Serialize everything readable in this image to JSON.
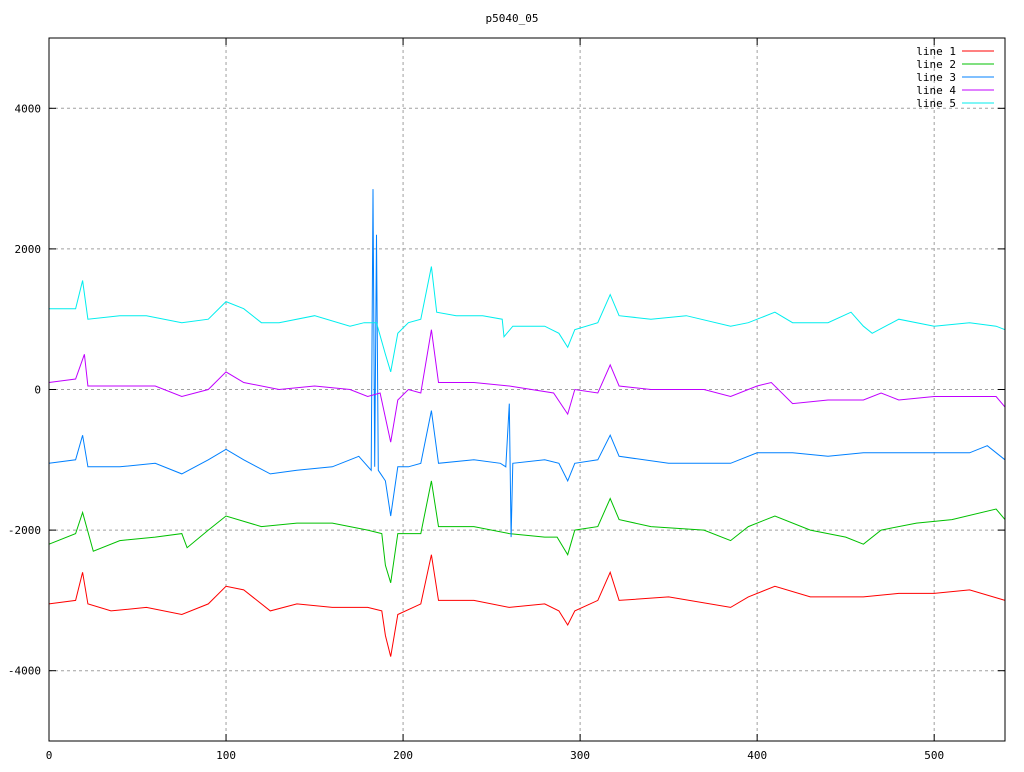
{
  "chart_data": {
    "type": "line",
    "title": "p5040_05",
    "xlabel": "",
    "ylabel": "",
    "xlim": [
      0,
      540
    ],
    "ylim": [
      -5000,
      5000
    ],
    "xticks": [
      0,
      100,
      200,
      300,
      400,
      500
    ],
    "yticks": [
      -4000,
      -2000,
      0,
      2000,
      4000
    ],
    "grid": true,
    "legend_position": "top-right",
    "series": [
      {
        "name": "line 1",
        "color": "#ff0000",
        "x": [
          0,
          15,
          19,
          22,
          35,
          55,
          75,
          90,
          100,
          110,
          125,
          140,
          160,
          180,
          188,
          190,
          193,
          197,
          210,
          216,
          220,
          240,
          260,
          280,
          288,
          293,
          297,
          310,
          317,
          322,
          350,
          385,
          395,
          410,
          430,
          460,
          480,
          500,
          520,
          540
        ],
        "y": [
          -3050,
          -3000,
          -2600,
          -3050,
          -3150,
          -3100,
          -3200,
          -3050,
          -2800,
          -2850,
          -3150,
          -3050,
          -3100,
          -3100,
          -3150,
          -3500,
          -3800,
          -3200,
          -3050,
          -2350,
          -3000,
          -3000,
          -3100,
          -3050,
          -3150,
          -3350,
          -3150,
          -3000,
          -2600,
          -3000,
          -2950,
          -3100,
          -2950,
          -2800,
          -2950,
          -2950,
          -2900,
          -2900,
          -2850,
          -3000
        ]
      },
      {
        "name": "line 2",
        "color": "#00c000",
        "x": [
          0,
          15,
          19,
          25,
          40,
          60,
          75,
          78,
          90,
          100,
          120,
          140,
          160,
          180,
          188,
          190,
          193,
          197,
          210,
          216,
          220,
          240,
          260,
          280,
          287,
          293,
          297,
          310,
          317,
          322,
          340,
          370,
          385,
          395,
          410,
          430,
          450,
          460,
          470,
          490,
          510,
          535,
          540
        ],
        "y": [
          -2200,
          -2050,
          -1750,
          -2300,
          -2150,
          -2100,
          -2050,
          -2250,
          -2000,
          -1800,
          -1950,
          -1900,
          -1900,
          -2000,
          -2050,
          -2500,
          -2750,
          -2050,
          -2050,
          -1300,
          -1950,
          -1950,
          -2050,
          -2100,
          -2100,
          -2350,
          -2000,
          -1950,
          -1550,
          -1850,
          -1950,
          -2000,
          -2150,
          -1950,
          -1800,
          -2000,
          -2100,
          -2200,
          -2000,
          -1900,
          -1850,
          -1700,
          -1850
        ]
      },
      {
        "name": "line 3",
        "color": "#0080ff",
        "x": [
          0,
          15,
          19,
          22,
          40,
          60,
          75,
          90,
          100,
          110,
          125,
          140,
          160,
          175,
          182,
          183,
          184,
          185,
          186,
          190,
          193,
          197,
          203,
          210,
          216,
          220,
          240,
          255,
          258,
          260,
          261,
          262,
          280,
          288,
          293,
          297,
          310,
          317,
          322,
          350,
          370,
          385,
          400,
          420,
          440,
          460,
          480,
          500,
          520,
          530,
          540
        ],
        "y": [
          -1050,
          -1000,
          -650,
          -1100,
          -1100,
          -1050,
          -1200,
          -1000,
          -850,
          -1000,
          -1200,
          -1150,
          -1100,
          -950,
          -1150,
          2850,
          -1100,
          2200,
          -1150,
          -1300,
          -1800,
          -1100,
          -1100,
          -1050,
          -300,
          -1050,
          -1000,
          -1050,
          -1100,
          -200,
          -2100,
          -1050,
          -1000,
          -1050,
          -1300,
          -1050,
          -1000,
          -650,
          -950,
          -1050,
          -1050,
          -1050,
          -900,
          -900,
          -950,
          -900,
          -900,
          -900,
          -900,
          -800,
          -1000
        ]
      },
      {
        "name": "line 4",
        "color": "#c000ff",
        "x": [
          0,
          15,
          20,
          22,
          40,
          60,
          75,
          90,
          100,
          110,
          130,
          150,
          170,
          180,
          187,
          190,
          193,
          197,
          203,
          210,
          216,
          220,
          240,
          260,
          285,
          293,
          297,
          310,
          317,
          322,
          340,
          370,
          385,
          400,
          408,
          420,
          440,
          460,
          470,
          480,
          500,
          520,
          535,
          540
        ],
        "y": [
          100,
          150,
          500,
          50,
          50,
          50,
          -100,
          0,
          250,
          100,
          0,
          50,
          0,
          -100,
          -50,
          -400,
          -750,
          -150,
          0,
          -50,
          850,
          100,
          100,
          50,
          -50,
          -350,
          0,
          -50,
          350,
          50,
          0,
          0,
          -100,
          50,
          100,
          -200,
          -150,
          -150,
          -50,
          -150,
          -100,
          -100,
          -100,
          -250
        ]
      },
      {
        "name": "line 5",
        "color": "#00eeee",
        "x": [
          0,
          15,
          19,
          22,
          40,
          55,
          75,
          90,
          100,
          110,
          120,
          130,
          150,
          170,
          178,
          185,
          190,
          193,
          197,
          203,
          210,
          216,
          219,
          230,
          245,
          256,
          257,
          262,
          280,
          288,
          293,
          297,
          310,
          317,
          322,
          340,
          360,
          385,
          395,
          410,
          420,
          440,
          453,
          460,
          465,
          480,
          500,
          520,
          535,
          540
        ],
        "y": [
          1150,
          1150,
          1550,
          1000,
          1050,
          1050,
          950,
          1000,
          1250,
          1150,
          950,
          950,
          1050,
          900,
          950,
          950,
          500,
          250,
          800,
          950,
          1000,
          1750,
          1100,
          1050,
          1050,
          1000,
          750,
          900,
          900,
          800,
          600,
          850,
          950,
          1350,
          1050,
          1000,
          1050,
          900,
          950,
          1100,
          950,
          950,
          1100,
          900,
          800,
          1000,
          900,
          950,
          900,
          850
        ]
      }
    ]
  }
}
